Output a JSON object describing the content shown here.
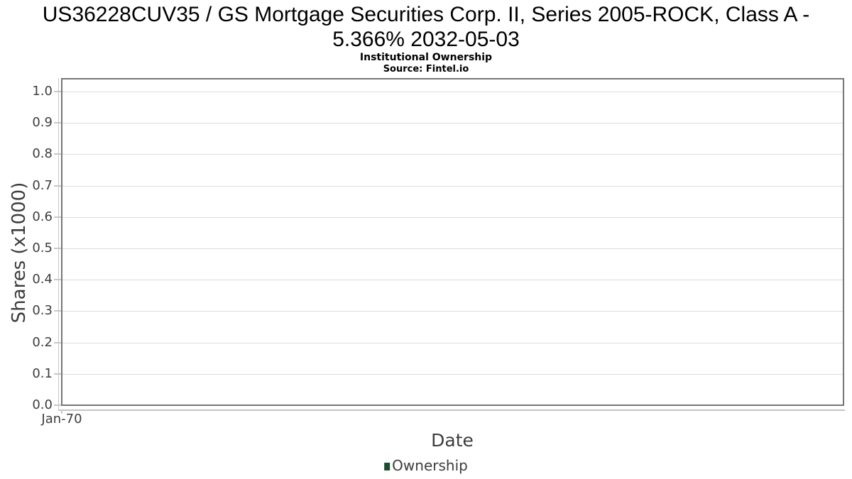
{
  "chart_data": {
    "type": "line",
    "title": "US36228CUV35 / GS Mortgage Securities Corp. II, Series 2005-ROCK, Class A - 5.366% 2032-05-03",
    "subtitle": "Institutional Ownership",
    "source": "Source: Fintel.io",
    "xlabel": "Date",
    "ylabel": "Shares (x1000)",
    "x_tick_labels": [
      "Jan-70"
    ],
    "y_tick_labels": [
      "0.0",
      "0.1",
      "0.2",
      "0.3",
      "0.4",
      "0.5",
      "0.6",
      "0.7",
      "0.8",
      "0.9",
      "1.0"
    ],
    "ylim": [
      0.0,
      1.045
    ],
    "grid": true,
    "legend": {
      "position": "bottom",
      "entries": [
        {
          "label": "Ownership",
          "color": "#1a4d2e"
        }
      ]
    },
    "series": [
      {
        "name": "Ownership",
        "x": [],
        "values": []
      }
    ]
  },
  "colors": {
    "plot_border": "#767676",
    "gridline": "#dcdcdc",
    "axis_line": "#c8c8c8",
    "tick_label_text": "#3d3d3d",
    "title_text": "#000000",
    "legend_marker": "#1a4d2e"
  }
}
